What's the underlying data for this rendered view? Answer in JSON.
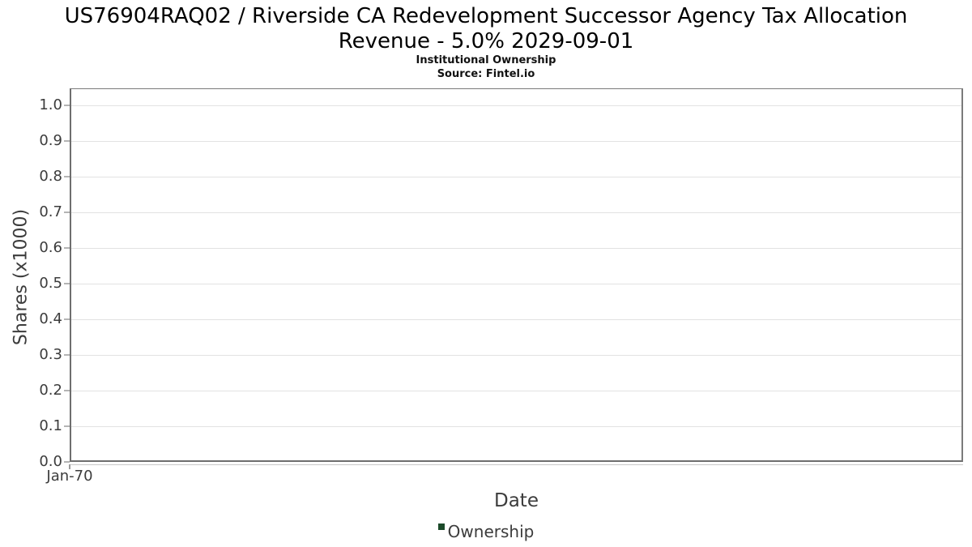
{
  "header": {
    "title_lines": [
      "US76904RAQ02 / Riverside CA Redevelopment Successor Agency Tax Allocation",
      "Revenue - 5.0% 2029-09-01"
    ],
    "subtitle": "Institutional Ownership",
    "source": "Source: Fintel.io"
  },
  "chart_data": {
    "type": "line",
    "title": "US76904RAQ02 / Riverside CA Redevelopment Successor Agency Tax Allocation Revenue - 5.0% 2029-09-01",
    "subtitle": "Institutional Ownership",
    "source": "Source: Fintel.io",
    "xlabel": "Date",
    "ylabel": "Shares (x1000)",
    "x_ticks": [
      "Jan-70"
    ],
    "y_ticks": [
      "0.0",
      "0.1",
      "0.2",
      "0.3",
      "0.4",
      "0.5",
      "0.6",
      "0.7",
      "0.8",
      "0.9",
      "1.0"
    ],
    "ylim": [
      0.0,
      1.05
    ],
    "grid": "horizontal-only",
    "legend_position": "bottom-center",
    "series": [
      {
        "name": "Ownership",
        "color": "#1b4a2a",
        "points": []
      }
    ]
  },
  "colors": {
    "legend_marker": "#1b4a2a",
    "gridline": "#e2e2e2",
    "plot_border": "#6e6e6e",
    "tick_text": "#3c3c3c",
    "title_text": "#000000"
  }
}
